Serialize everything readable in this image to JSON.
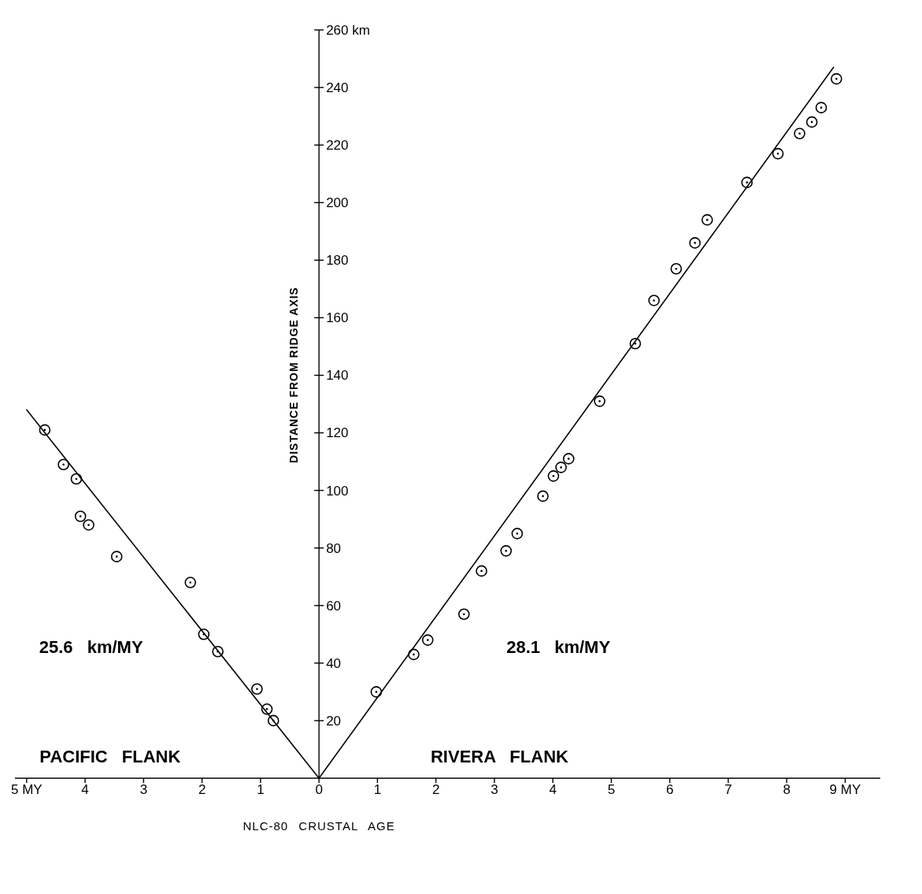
{
  "chart_data": {
    "type": "scatter",
    "xlabel": "NLC-80 CRUSTAL AGE",
    "ylabel": "DISTANCE FROM RIDGE AXIS",
    "xlim": [
      -5.2,
      9.6
    ],
    "ylim": [
      0,
      260
    ],
    "xticks": [
      {
        "value": -5,
        "label": "5 MY"
      },
      {
        "value": -4,
        "label": "4"
      },
      {
        "value": -3,
        "label": "3"
      },
      {
        "value": -2,
        "label": "2"
      },
      {
        "value": -1,
        "label": "1"
      },
      0,
      1,
      2,
      3,
      4,
      5,
      6,
      7,
      8,
      {
        "value": 9,
        "label": "9 MY"
      }
    ],
    "yticks": [
      20,
      40,
      60,
      80,
      100,
      120,
      140,
      160,
      180,
      200,
      220,
      240,
      {
        "value": 260,
        "label": "260 km"
      }
    ],
    "grid": false,
    "legend": false,
    "marker": "circle",
    "series": [
      {
        "color": "#000000",
        "x": [
          -4.69,
          -4.37,
          -4.15,
          -4.08,
          -3.94,
          -3.46,
          -2.2,
          -1.97,
          -1.73,
          -1.06,
          -0.89,
          -0.78
        ],
        "values": [
          121,
          109,
          104,
          91,
          88,
          77,
          68,
          50,
          44,
          31,
          24,
          20
        ]
      },
      {
        "color": "#000000",
        "x": [
          0.98,
          1.62,
          1.86,
          2.48,
          2.78,
          3.2,
          3.39,
          3.83,
          4.01,
          4.14,
          4.27,
          4.8,
          5.41,
          5.73,
          6.11,
          6.43,
          6.64,
          7.32,
          7.85,
          8.22,
          8.43,
          8.59,
          8.85
        ],
        "values": [
          30,
          43,
          48,
          57,
          72,
          79,
          85,
          98,
          105,
          108,
          111,
          131,
          151,
          166,
          177,
          186,
          194,
          207,
          217,
          224,
          228,
          233,
          243
        ]
      },
      {
        "type": "line",
        "marker": "none",
        "line_style": "solid",
        "color": "#000000",
        "x": [
          -5,
          0
        ],
        "values": [
          128,
          0
        ]
      },
      {
        "type": "line",
        "marker": "none",
        "line_style": "solid",
        "color": "#000000",
        "x": [
          0,
          8.8
        ],
        "values": [
          0,
          247
        ]
      }
    ],
    "annotations": [
      "25.6 km/MY",
      "28.1 km/MY",
      "PACIFIC FLANK",
      "RIVERA FLANK"
    ]
  }
}
